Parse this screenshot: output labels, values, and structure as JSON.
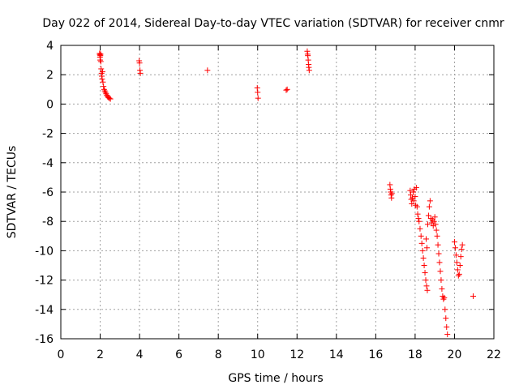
{
  "chart_data": {
    "type": "scatter",
    "title": "Day 022 of 2014, Sidereal Day-to-day VTEC variation (SDTVAR) for receiver cnmr",
    "xlabel": "GPS time / hours",
    "ylabel": "SDTVAR / TECUs",
    "xlim": [
      0,
      22
    ],
    "ylim": [
      -16,
      4
    ],
    "xticks": [
      0,
      2,
      4,
      6,
      8,
      10,
      12,
      14,
      16,
      18,
      20,
      22
    ],
    "yticks": [
      4,
      2,
      0,
      -2,
      -4,
      -6,
      -8,
      -10,
      -12,
      -14,
      -16
    ],
    "grid": true,
    "marker": "+",
    "color": "#ff0000",
    "series": [
      {
        "name": "SDTVAR",
        "points": [
          [
            1.97,
            3.45
          ],
          [
            1.98,
            3.35
          ],
          [
            1.99,
            3.2
          ],
          [
            2.0,
            3.0
          ],
          [
            2.01,
            3.3
          ],
          [
            2.02,
            3.4
          ],
          [
            2.03,
            2.9
          ],
          [
            2.05,
            2.4
          ],
          [
            2.07,
            2.1
          ],
          [
            2.08,
            1.9
          ],
          [
            2.1,
            1.7
          ],
          [
            2.12,
            2.2
          ],
          [
            2.14,
            1.5
          ],
          [
            2.17,
            1.2
          ],
          [
            2.2,
            1.0
          ],
          [
            2.23,
            0.9
          ],
          [
            2.27,
            0.8
          ],
          [
            2.3,
            0.7
          ],
          [
            2.34,
            0.6
          ],
          [
            2.38,
            0.5
          ],
          [
            2.42,
            0.45
          ],
          [
            2.47,
            0.4
          ],
          [
            2.52,
            0.35
          ],
          [
            3.98,
            2.95
          ],
          [
            4.0,
            2.8
          ],
          [
            4.02,
            2.3
          ],
          [
            4.04,
            2.1
          ],
          [
            7.45,
            2.3
          ],
          [
            9.98,
            1.1
          ],
          [
            10.0,
            0.8
          ],
          [
            10.02,
            0.4
          ],
          [
            11.45,
            0.95
          ],
          [
            11.5,
            1.0
          ],
          [
            12.52,
            3.6
          ],
          [
            12.54,
            3.4
          ],
          [
            12.55,
            3.3
          ],
          [
            12.57,
            3.0
          ],
          [
            12.59,
            2.7
          ],
          [
            12.6,
            2.5
          ],
          [
            12.62,
            2.3
          ],
          [
            16.72,
            -5.5
          ],
          [
            16.74,
            -5.8
          ],
          [
            16.76,
            -6.0
          ],
          [
            16.78,
            -6.2
          ],
          [
            16.8,
            -6.4
          ],
          [
            16.82,
            -6.1
          ],
          [
            17.75,
            -5.9
          ],
          [
            17.78,
            -6.2
          ],
          [
            17.8,
            -6.5
          ],
          [
            17.83,
            -6.8
          ],
          [
            17.86,
            -6.4
          ],
          [
            17.9,
            -6.0
          ],
          [
            17.93,
            -6.6
          ],
          [
            17.96,
            -5.8
          ],
          [
            18.0,
            -6.3
          ],
          [
            18.03,
            -6.9
          ],
          [
            18.06,
            -5.7
          ],
          [
            18.1,
            -7.0
          ],
          [
            18.13,
            -7.5
          ],
          [
            18.17,
            -7.8
          ],
          [
            18.2,
            -8.0
          ],
          [
            18.25,
            -8.5
          ],
          [
            18.3,
            -9.0
          ],
          [
            18.34,
            -9.5
          ],
          [
            18.38,
            -10.0
          ],
          [
            18.42,
            -10.5
          ],
          [
            18.46,
            -11.0
          ],
          [
            18.5,
            -11.5
          ],
          [
            18.54,
            -12.0
          ],
          [
            18.58,
            -12.4
          ],
          [
            18.62,
            -12.7
          ],
          [
            18.56,
            -9.2
          ],
          [
            18.6,
            -9.8
          ],
          [
            18.64,
            -8.2
          ],
          [
            18.68,
            -7.6
          ],
          [
            18.72,
            -7.0
          ],
          [
            18.76,
            -6.6
          ],
          [
            18.8,
            -7.8
          ],
          [
            18.84,
            -8.1
          ],
          [
            18.88,
            -7.9
          ],
          [
            18.92,
            -8.3
          ],
          [
            18.96,
            -8.0
          ],
          [
            19.0,
            -7.7
          ],
          [
            19.04,
            -8.2
          ],
          [
            19.08,
            -8.6
          ],
          [
            19.12,
            -9.0
          ],
          [
            19.16,
            -9.6
          ],
          [
            19.2,
            -10.2
          ],
          [
            19.24,
            -10.8
          ],
          [
            19.28,
            -11.4
          ],
          [
            19.32,
            -12.0
          ],
          [
            19.36,
            -12.6
          ],
          [
            19.4,
            -13.1
          ],
          [
            19.44,
            -13.3
          ],
          [
            19.48,
            -13.2
          ],
          [
            19.52,
            -14.0
          ],
          [
            19.56,
            -14.6
          ],
          [
            19.6,
            -15.2
          ],
          [
            19.64,
            -15.7
          ],
          [
            20.0,
            -9.4
          ],
          [
            20.04,
            -9.8
          ],
          [
            20.08,
            -10.3
          ],
          [
            20.12,
            -10.8
          ],
          [
            20.16,
            -11.3
          ],
          [
            20.2,
            -11.7
          ],
          [
            20.24,
            -11.6
          ],
          [
            20.28,
            -11.0
          ],
          [
            20.32,
            -10.4
          ],
          [
            20.36,
            -9.9
          ],
          [
            20.4,
            -9.6
          ],
          [
            20.95,
            -13.1
          ]
        ]
      }
    ]
  }
}
